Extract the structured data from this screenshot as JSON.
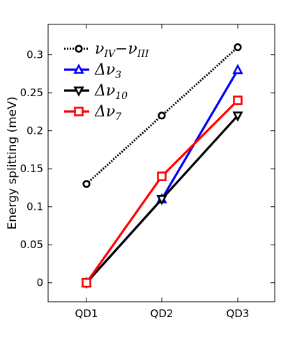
{
  "chart_data": {
    "type": "line",
    "categories": [
      "QD1",
      "QD2",
      "QD3"
    ],
    "ylabel": "Energy splitting (meV)",
    "xlabel": "",
    "ylim": [
      -0.025,
      0.34
    ],
    "yticks": [
      0,
      0.05,
      0.1,
      0.15,
      0.2,
      0.25,
      0.3
    ],
    "ytick_labels": [
      "0",
      "0.05",
      "0.1",
      "0.15",
      "0.2",
      "0.25",
      "0.3"
    ],
    "grid": false,
    "legend_position": "top-left",
    "series": [
      {
        "name": "νIV−νIII",
        "name_parts": {
          "main": "ν",
          "sub": "IV",
          "op": "−",
          "main2": "ν",
          "sub2": "III"
        },
        "values": [
          0.13,
          0.22,
          0.31
        ],
        "color": "#000000",
        "marker": "circle",
        "line": "dotted"
      },
      {
        "name": "Δν3",
        "name_parts": {
          "main": "Δν",
          "sub": "3"
        },
        "values": [
          0,
          0.11,
          0.28
        ],
        "color": "#0000ff",
        "marker": "triangle-up",
        "line": "solid"
      },
      {
        "name": "Δν10",
        "name_parts": {
          "main": "Δν",
          "sub": "10"
        },
        "values": [
          0,
          0.11,
          0.22
        ],
        "color": "#000000",
        "marker": "triangle-down",
        "line": "solid"
      },
      {
        "name": "Δν7",
        "name_parts": {
          "main": "Δν",
          "sub": "7"
        },
        "values": [
          0,
          0.14,
          0.24
        ],
        "color": "#ff0000",
        "marker": "square",
        "line": "solid"
      }
    ]
  }
}
